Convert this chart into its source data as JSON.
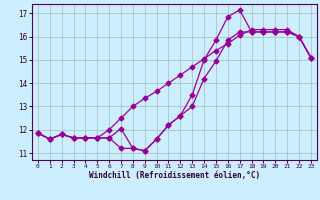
{
  "xlabel": "Windchill (Refroidissement éolien,°C)",
  "background_color": "#cceeff",
  "grid_color": "#aacccc",
  "line_color": "#990099",
  "xlim": [
    -0.5,
    23.5
  ],
  "ylim": [
    10.7,
    17.4
  ],
  "yticks": [
    11,
    12,
    13,
    14,
    15,
    16,
    17
  ],
  "xticks": [
    0,
    1,
    2,
    3,
    4,
    5,
    6,
    7,
    8,
    9,
    10,
    11,
    12,
    13,
    14,
    15,
    16,
    17,
    18,
    19,
    20,
    21,
    22,
    23
  ],
  "series1_x": [
    0,
    1,
    2,
    3,
    4,
    5,
    6,
    7,
    8,
    9,
    10,
    11,
    12,
    13,
    14,
    15,
    16,
    17,
    18,
    19,
    20,
    21,
    22,
    23
  ],
  "series1_y": [
    11.85,
    11.6,
    11.8,
    11.65,
    11.65,
    11.65,
    11.65,
    11.2,
    11.2,
    11.1,
    11.6,
    12.2,
    12.6,
    13.0,
    14.2,
    14.95,
    15.85,
    16.2,
    16.2,
    16.2,
    16.2,
    16.2,
    16.0,
    15.1
  ],
  "series2_x": [
    0,
    1,
    2,
    3,
    4,
    5,
    6,
    7,
    8,
    9,
    10,
    11,
    12,
    13,
    14,
    15,
    16,
    17,
    18,
    19,
    20,
    21,
    22,
    23
  ],
  "series2_y": [
    11.85,
    11.6,
    11.8,
    11.65,
    11.65,
    11.65,
    11.65,
    12.05,
    11.2,
    11.1,
    11.6,
    12.2,
    12.6,
    13.5,
    15.0,
    15.85,
    16.85,
    17.15,
    16.2,
    16.2,
    16.2,
    16.2,
    16.0,
    15.1
  ],
  "series3_x": [
    0,
    1,
    2,
    3,
    4,
    5,
    6,
    7,
    8,
    9,
    10,
    11,
    12,
    13,
    14,
    15,
    16,
    17,
    18,
    19,
    20,
    21,
    22,
    23
  ],
  "series3_y": [
    11.85,
    11.6,
    11.8,
    11.65,
    11.65,
    11.65,
    12.0,
    12.5,
    13.0,
    13.35,
    13.65,
    14.0,
    14.35,
    14.7,
    15.05,
    15.4,
    15.7,
    16.05,
    16.3,
    16.3,
    16.3,
    16.3,
    16.0,
    15.1
  ]
}
